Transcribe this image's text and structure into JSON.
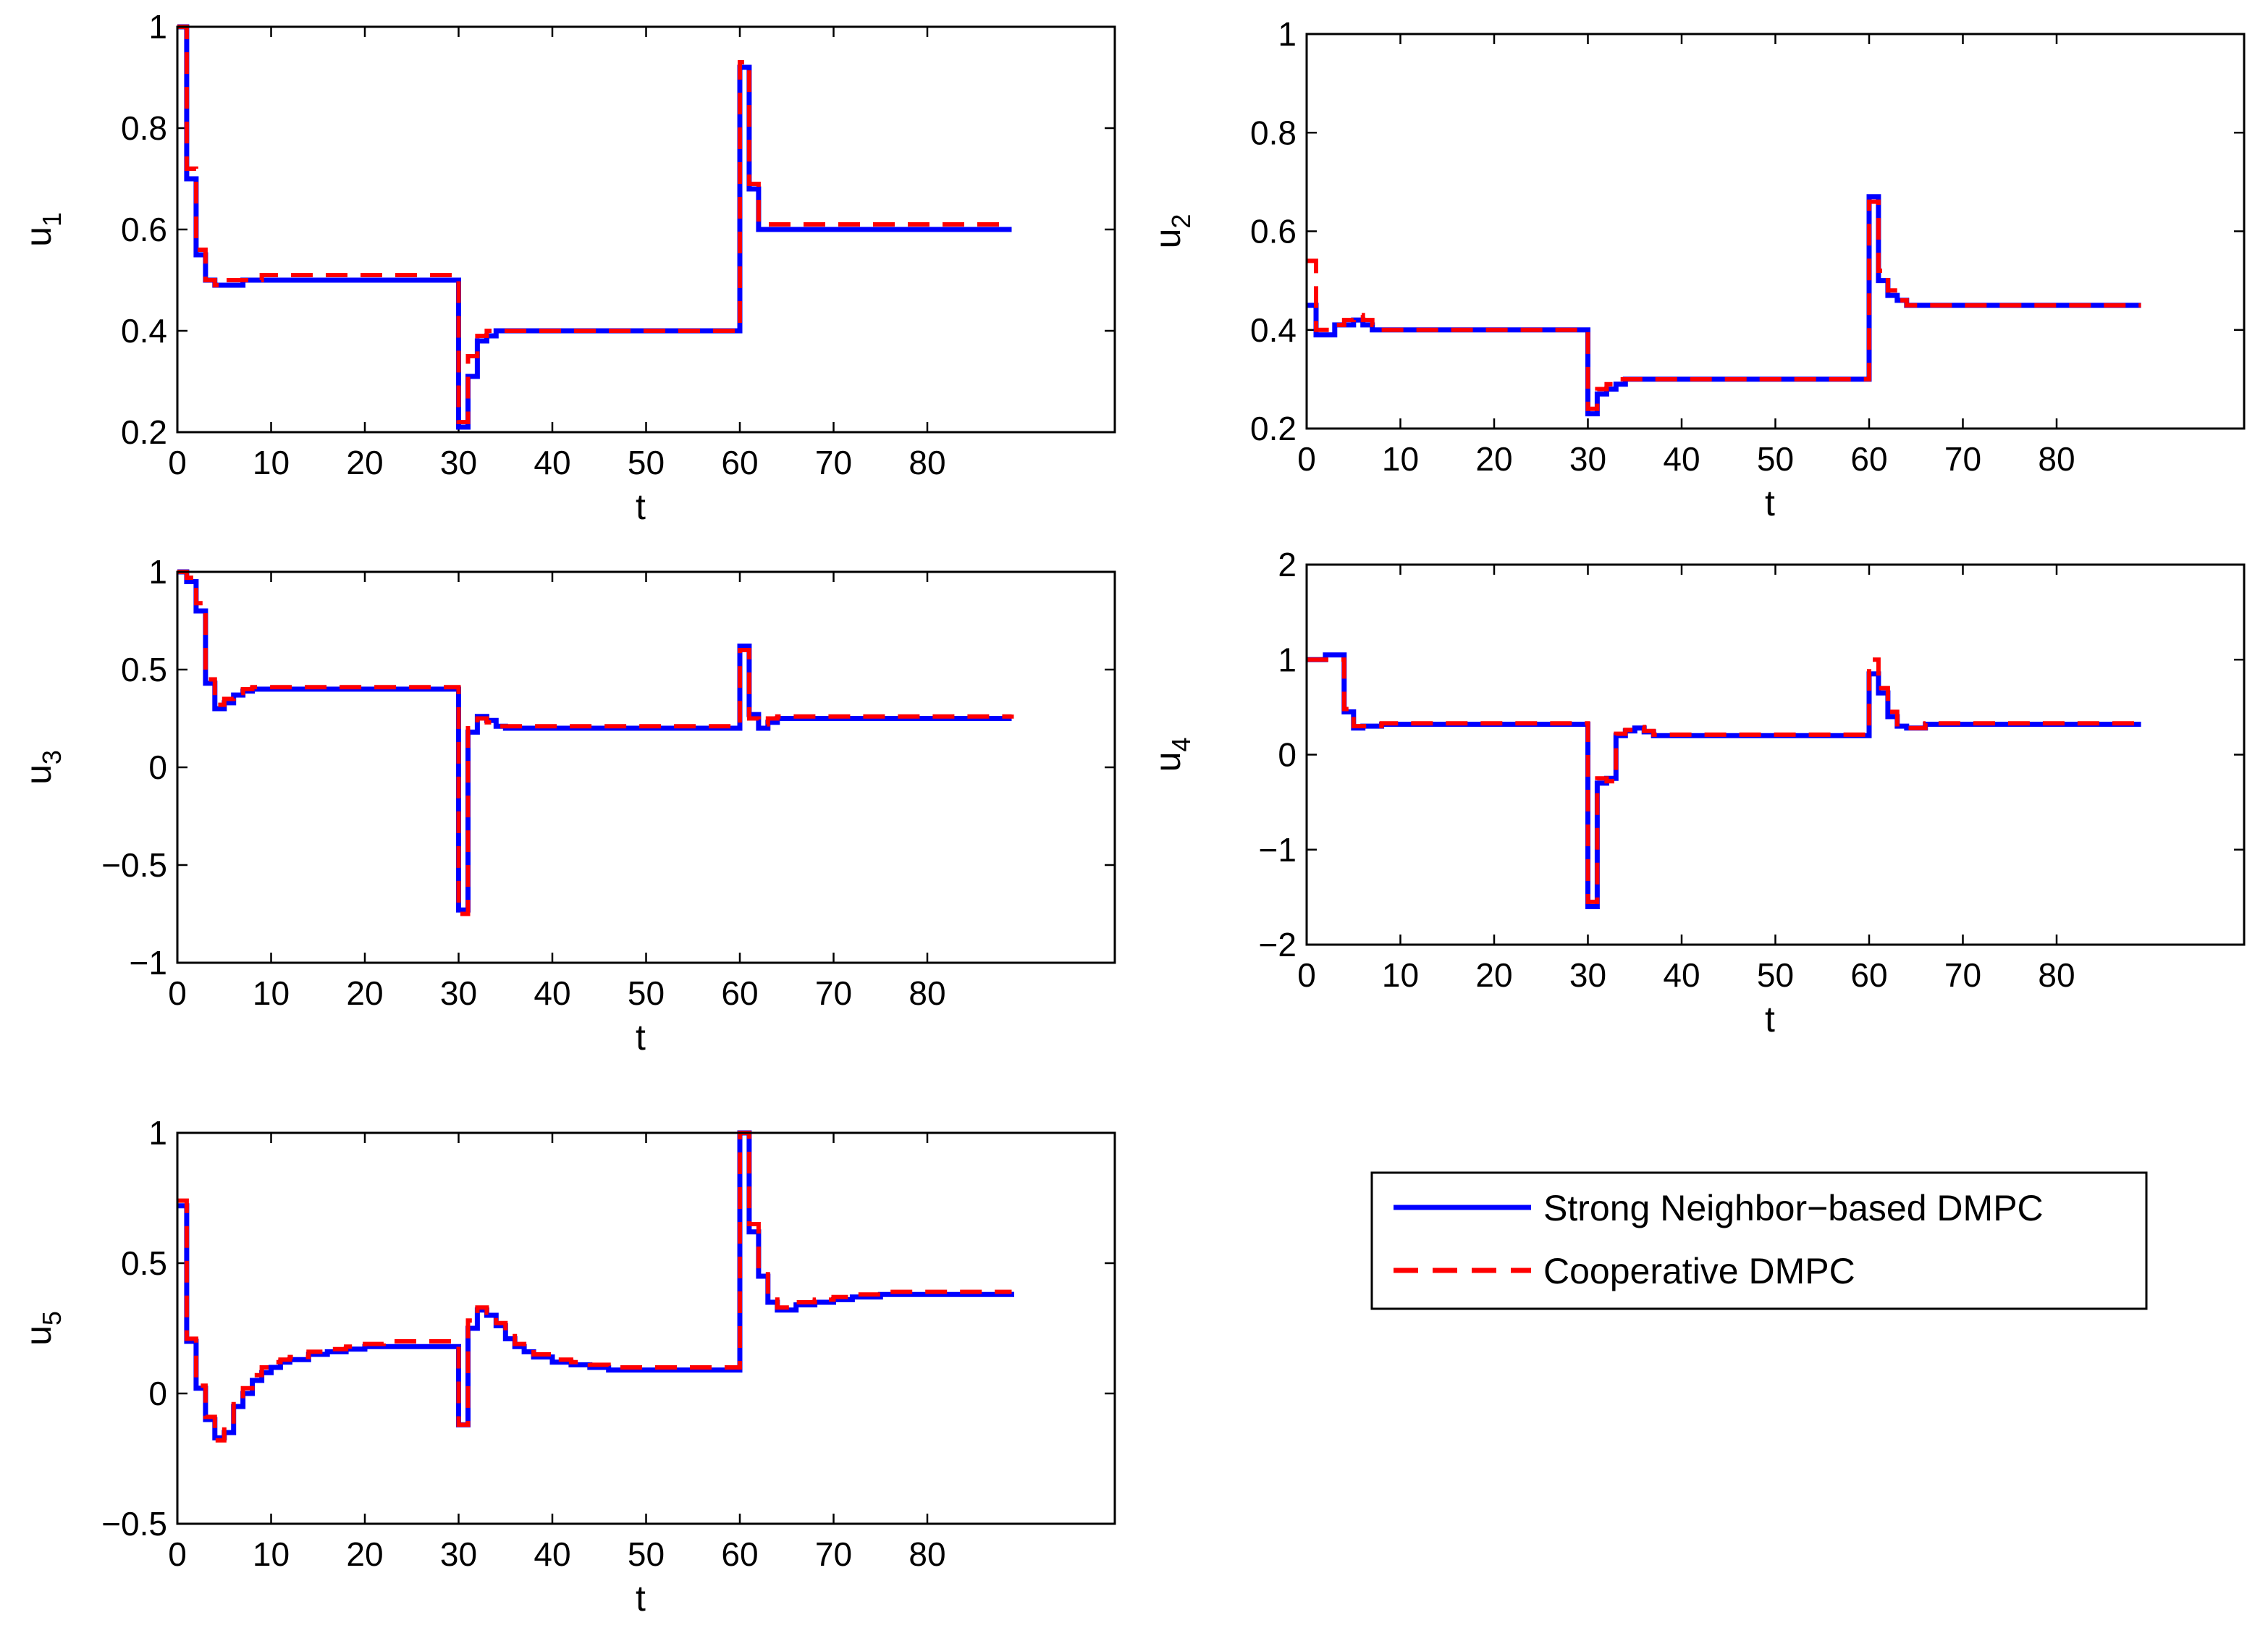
{
  "figure": {
    "legend": {
      "entries": [
        {
          "name": "Strong Neighbor−based DMPC",
          "color": "#0000ff",
          "style": "solid"
        },
        {
          "name": "Cooperative DMPC",
          "color": "#ff0000",
          "style": "dashed"
        }
      ]
    }
  },
  "chart_data": [
    {
      "id": "u1",
      "type": "line",
      "step": true,
      "xlabel": "t",
      "ylabel": "u",
      "ylabel_sub": "1",
      "xlim": [
        0,
        100
      ],
      "ylim": [
        0.2,
        1
      ],
      "xticks": [
        0,
        10,
        20,
        30,
        40,
        50,
        60,
        70,
        80
      ],
      "yticks": [
        0.2,
        0.4,
        0.6,
        0.8,
        1
      ],
      "yticklabels": [
        "0.2",
        "0.4",
        "0.6",
        "0.8",
        "1"
      ],
      "series": [
        {
          "name": "Strong Neighbor−based DMPC",
          "x": [
            0,
            1,
            2,
            3,
            4,
            5,
            6,
            7,
            8,
            9,
            30,
            31,
            32,
            33,
            34,
            35,
            60,
            61,
            62,
            63,
            64,
            65,
            66,
            89
          ],
          "y": [
            1,
            0.7,
            0.55,
            0.5,
            0.49,
            0.49,
            0.49,
            0.5,
            0.5,
            0.5,
            0.21,
            0.31,
            0.38,
            0.39,
            0.4,
            0.4,
            0.92,
            0.68,
            0.6,
            0.6,
            0.6,
            0.6,
            0.6,
            0.6
          ]
        },
        {
          "name": "Cooperative DMPC",
          "x": [
            0,
            1,
            2,
            3,
            4,
            5,
            6,
            7,
            8,
            9,
            30,
            31,
            32,
            33,
            34,
            35,
            60,
            61,
            62,
            63,
            64,
            65,
            66,
            89
          ],
          "y": [
            1,
            0.72,
            0.56,
            0.5,
            0.49,
            0.5,
            0.5,
            0.5,
            0.5,
            0.51,
            0.22,
            0.35,
            0.39,
            0.4,
            0.4,
            0.4,
            0.93,
            0.69,
            0.61,
            0.61,
            0.61,
            0.61,
            0.61,
            0.61
          ]
        }
      ]
    },
    {
      "id": "u2",
      "type": "line",
      "step": true,
      "xlabel": "t",
      "ylabel": "u",
      "ylabel_sub": "2",
      "xlim": [
        0,
        100
      ],
      "ylim": [
        0.2,
        1
      ],
      "xticks": [
        0,
        10,
        20,
        30,
        40,
        50,
        60,
        70,
        80
      ],
      "yticks": [
        0.2,
        0.4,
        0.6,
        0.8,
        1
      ],
      "yticklabels": [
        "0.2",
        "0.4",
        "0.6",
        "0.8",
        "1"
      ],
      "series": [
        {
          "name": "Strong Neighbor−based DMPC",
          "x": [
            0,
            1,
            2,
            3,
            4,
            5,
            6,
            7,
            8,
            30,
            31,
            32,
            33,
            34,
            35,
            60,
            61,
            62,
            63,
            64,
            65,
            89
          ],
          "y": [
            0.45,
            0.39,
            0.39,
            0.41,
            0.41,
            0.42,
            0.41,
            0.4,
            0.4,
            0.23,
            0.27,
            0.28,
            0.29,
            0.3,
            0.3,
            0.67,
            0.5,
            0.47,
            0.46,
            0.45,
            0.45,
            0.45
          ]
        },
        {
          "name": "Cooperative DMPC",
          "x": [
            0,
            1,
            2,
            3,
            4,
            5,
            6,
            7,
            8,
            30,
            31,
            32,
            33,
            34,
            35,
            60,
            61,
            62,
            63,
            64,
            65,
            89
          ],
          "y": [
            0.54,
            0.4,
            0.4,
            0.41,
            0.42,
            0.43,
            0.42,
            0.41,
            0.4,
            0.24,
            0.28,
            0.29,
            0.3,
            0.3,
            0.3,
            0.66,
            0.52,
            0.48,
            0.46,
            0.45,
            0.45,
            0.45
          ]
        }
      ]
    },
    {
      "id": "u3",
      "type": "line",
      "step": true,
      "xlabel": "t",
      "ylabel": "u",
      "ylabel_sub": "3",
      "xlim": [
        0,
        100
      ],
      "ylim": [
        -1,
        1
      ],
      "xticks": [
        0,
        10,
        20,
        30,
        40,
        50,
        60,
        70,
        80
      ],
      "yticks": [
        -1,
        -0.5,
        0,
        0.5,
        1
      ],
      "yticklabels": [
        "−1",
        "−0.5",
        "0",
        "0.5",
        "1"
      ],
      "series": [
        {
          "name": "Strong Neighbor−based DMPC",
          "x": [
            0,
            1,
            2,
            3,
            4,
            5,
            6,
            7,
            8,
            9,
            30,
            31,
            32,
            33,
            34,
            35,
            60,
            61,
            62,
            63,
            64,
            65,
            89
          ],
          "y": [
            1,
            0.95,
            0.8,
            0.43,
            0.3,
            0.33,
            0.37,
            0.39,
            0.4,
            0.4,
            -0.73,
            0.18,
            0.26,
            0.24,
            0.21,
            0.2,
            0.62,
            0.27,
            0.2,
            0.23,
            0.25,
            0.25,
            0.25
          ]
        },
        {
          "name": "Cooperative DMPC",
          "x": [
            0,
            1,
            2,
            3,
            4,
            5,
            6,
            7,
            8,
            9,
            30,
            31,
            32,
            33,
            34,
            35,
            60,
            61,
            62,
            63,
            64,
            65,
            89
          ],
          "y": [
            1,
            0.97,
            0.84,
            0.45,
            0.32,
            0.35,
            0.38,
            0.4,
            0.41,
            0.41,
            -0.75,
            0.2,
            0.25,
            0.23,
            0.21,
            0.21,
            0.6,
            0.25,
            0.22,
            0.25,
            0.26,
            0.26,
            0.27
          ]
        }
      ]
    },
    {
      "id": "u4",
      "type": "line",
      "step": true,
      "xlabel": "t",
      "ylabel": "u",
      "ylabel_sub": "4",
      "xlim": [
        0,
        100
      ],
      "ylim": [
        -2,
        2
      ],
      "xticks": [
        0,
        10,
        20,
        30,
        40,
        50,
        60,
        70,
        80
      ],
      "yticks": [
        -2,
        -1,
        0,
        1,
        2
      ],
      "yticklabels": [
        "−2",
        "−1",
        "0",
        "1",
        "2"
      ],
      "series": [
        {
          "name": "Strong Neighbor−based DMPC",
          "x": [
            0,
            2,
            4,
            5,
            6,
            8,
            30,
            31,
            32,
            33,
            34,
            35,
            36,
            37,
            60,
            61,
            62,
            63,
            64,
            66,
            89
          ],
          "y": [
            1,
            1.05,
            0.45,
            0.28,
            0.3,
            0.32,
            -1.6,
            -0.3,
            -0.25,
            0.2,
            0.25,
            0.28,
            0.24,
            0.2,
            0.85,
            0.65,
            0.4,
            0.3,
            0.28,
            0.32,
            0.32
          ]
        },
        {
          "name": "Cooperative DMPC",
          "x": [
            0,
            2,
            4,
            5,
            6,
            8,
            30,
            31,
            32,
            33,
            34,
            35,
            36,
            37,
            60,
            61,
            62,
            63,
            64,
            66,
            89
          ],
          "y": [
            1,
            1,
            0.48,
            0.3,
            0.3,
            0.33,
            -1.55,
            -0.25,
            -0.28,
            0.22,
            0.26,
            0.29,
            0.25,
            0.21,
            1.0,
            0.7,
            0.45,
            0.32,
            0.28,
            0.33,
            0.33
          ]
        }
      ]
    },
    {
      "id": "u5",
      "type": "line",
      "step": true,
      "xlabel": "t",
      "ylabel": "u",
      "ylabel_sub": "5",
      "xlim": [
        0,
        100
      ],
      "ylim": [
        -0.5,
        1
      ],
      "xticks": [
        0,
        10,
        20,
        30,
        40,
        50,
        60,
        70,
        80
      ],
      "yticks": [
        -0.5,
        0,
        0.5,
        1
      ],
      "yticklabels": [
        "−0.5",
        "0",
        "0.5",
        "1"
      ],
      "series": [
        {
          "name": "Strong Neighbor−based DMPC",
          "x": [
            0,
            1,
            2,
            3,
            4,
            5,
            6,
            7,
            8,
            9,
            10,
            11,
            12,
            14,
            16,
            18,
            20,
            22,
            24,
            26,
            28,
            30,
            31,
            32,
            33,
            34,
            35,
            36,
            37,
            38,
            40,
            42,
            44,
            46,
            50,
            55,
            60,
            61,
            62,
            63,
            64,
            66,
            68,
            70,
            72,
            75,
            80,
            89
          ],
          "y": [
            0.72,
            0.2,
            0.02,
            -0.1,
            -0.17,
            -0.15,
            -0.05,
            0.0,
            0.05,
            0.08,
            0.1,
            0.12,
            0.13,
            0.15,
            0.16,
            0.17,
            0.18,
            0.18,
            0.18,
            0.18,
            0.18,
            -0.12,
            0.25,
            0.32,
            0.3,
            0.26,
            0.21,
            0.18,
            0.16,
            0.14,
            0.12,
            0.11,
            0.1,
            0.09,
            0.09,
            0.09,
            1.0,
            0.62,
            0.45,
            0.35,
            0.32,
            0.34,
            0.35,
            0.36,
            0.37,
            0.38,
            0.38,
            0.39
          ]
        },
        {
          "name": "Cooperative DMPC",
          "x": [
            0,
            1,
            2,
            3,
            4,
            5,
            6,
            7,
            8,
            9,
            10,
            11,
            12,
            14,
            16,
            18,
            20,
            22,
            24,
            26,
            28,
            30,
            31,
            32,
            33,
            34,
            35,
            36,
            37,
            38,
            40,
            42,
            44,
            46,
            50,
            55,
            60,
            61,
            62,
            63,
            64,
            66,
            68,
            70,
            72,
            75,
            80,
            89
          ],
          "y": [
            0.74,
            0.21,
            0.03,
            -0.09,
            -0.18,
            -0.13,
            -0.03,
            0.02,
            0.07,
            0.1,
            0.12,
            0.13,
            0.14,
            0.16,
            0.17,
            0.18,
            0.19,
            0.2,
            0.2,
            0.2,
            0.2,
            -0.12,
            0.28,
            0.33,
            0.31,
            0.27,
            0.22,
            0.19,
            0.17,
            0.15,
            0.13,
            0.12,
            0.11,
            0.1,
            0.1,
            0.1,
            1.0,
            0.65,
            0.47,
            0.37,
            0.33,
            0.35,
            0.36,
            0.37,
            0.38,
            0.39,
            0.39,
            0.39
          ]
        }
      ]
    }
  ]
}
